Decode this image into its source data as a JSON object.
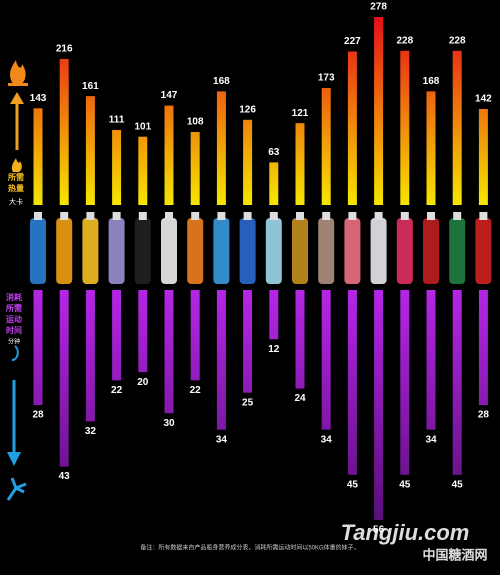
{
  "chart_data": [
    {
      "type": "bar",
      "y_label": [
        "所需",
        "热量"
      ],
      "unit": "大卡",
      "values": [
        143,
        216,
        161,
        111,
        101,
        147,
        108,
        168,
        126,
        63,
        121,
        173,
        227,
        278,
        228,
        168,
        228,
        142
      ],
      "color": [
        "#e8101a",
        "#f5e600"
      ]
    },
    {
      "type": "bar",
      "y_label": [
        "消耗",
        "所需",
        "运动",
        "时间"
      ],
      "unit": "分钟",
      "values": [
        28,
        43,
        32,
        22,
        20,
        30,
        22,
        34,
        25,
        12,
        24,
        34,
        45,
        56,
        45,
        34,
        45,
        28
      ],
      "color": [
        "#b526e6",
        "#5a0f7a"
      ]
    }
  ],
  "footnote": "备注：所有数据来自产品瓶身营养成分表，消耗所需运动时间以50KG体重的妹子，",
  "watermark": [
    "Tangjiu.com",
    "中国糖酒网"
  ]
}
